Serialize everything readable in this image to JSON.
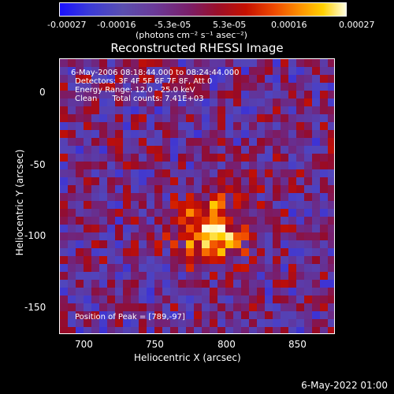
{
  "colorbar": {
    "ticks": [
      "-0.00027",
      "-0.00016",
      "-5.3e-05",
      "5.3e-05",
      "0.00016",
      "0.00027"
    ],
    "units": "(photons cm⁻² s⁻¹ asec⁻²)"
  },
  "chart_data": {
    "type": "heatmap",
    "title": "Reconstructed RHESSI Image",
    "xlabel": "Heliocentric X (arcsec)",
    "ylabel": "Heliocentric Y (arcsec)",
    "x_ticks": [
      "700",
      "750",
      "800",
      "850"
    ],
    "y_ticks": [
      "0",
      "-50",
      "-100",
      "-150"
    ],
    "xlim": [
      684,
      876
    ],
    "ylim": [
      -171,
      21
    ],
    "clim": [
      -0.00027,
      0.00027
    ],
    "annotations": {
      "time": "6-May-2006 08:18:44.000 to 08:24:44.000",
      "detectors": "Detectors: 3F 4F 5F 6F 7F 8F, Att 0",
      "energy": "Energy Range: 12.0 - 25.0 keV",
      "clean": "Clean      Total counts: 7.41E+03",
      "peak": "Position of Peak = [789,-97]"
    },
    "peak": [
      789,
      -97
    ]
  },
  "timestamp": "6-May-2022 01:00"
}
